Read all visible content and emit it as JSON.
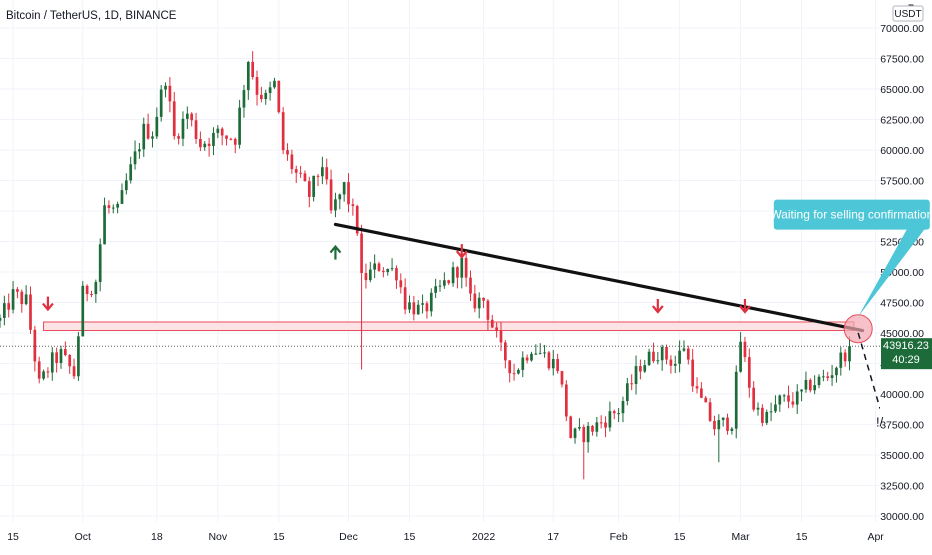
{
  "symbol_title": "Bitcoin / TetherUS, 1D, BINANCE",
  "currency_label": "USDT",
  "price_axis_top": "7",
  "last_price": "43916.23",
  "countdown": "40:29",
  "annotation": "Waiting for selling confirmation",
  "pullback_mark": "!/",
  "colors": {
    "up": "#1e6b3a",
    "down": "#e0303f",
    "trendline": "#111111",
    "zone_border": "#e74c5b",
    "zone_fill": "#fde3e5",
    "callout": "#4dc6d7",
    "circle": "#f2a7b0",
    "arrow_down": "#e0303f",
    "arrow_up": "#1e6b3a"
  },
  "chart_data": {
    "type": "candlestick",
    "symbol": "Bitcoin / TetherUS",
    "timeframe": "1D",
    "exchange": "BINANCE",
    "y_axis": {
      "ticks": [
        30000,
        32500,
        35000,
        37500,
        40000,
        42500,
        45000,
        47500,
        50000,
        52500,
        55000,
        57500,
        60000,
        62500,
        65000,
        67500,
        70000
      ],
      "range": [
        29500,
        72300
      ],
      "labels": [
        "30000.00",
        "32500.00",
        "35000.00",
        "37500.00",
        "40000.00",
        "42500.00",
        "45000.00",
        "47500.00",
        "50000.00",
        "52500.00",
        "55000.00",
        "57500.00",
        "60000.00",
        "62500.00",
        "65000.00",
        "67500.00",
        "70000.00"
      ]
    },
    "x_axis": {
      "range": [
        "2021-09-12",
        "2022-04-02"
      ],
      "ticks": [
        {
          "label": "15",
          "date": "2021-09-15"
        },
        {
          "label": "Oct",
          "date": "2021-10-01"
        },
        {
          "label": "18",
          "date": "2021-10-18"
        },
        {
          "label": "Nov",
          "date": "2021-11-01"
        },
        {
          "label": "15",
          "date": "2021-11-15"
        },
        {
          "label": "Dec",
          "date": "2021-12-01"
        },
        {
          "label": "15",
          "date": "2021-12-15"
        },
        {
          "label": "2022",
          "date": "2022-01-01"
        },
        {
          "label": "17",
          "date": "2022-01-17"
        },
        {
          "label": "Feb",
          "date": "2022-02-01"
        },
        {
          "label": "15",
          "date": "2022-02-15"
        },
        {
          "label": "Mar",
          "date": "2022-03-01"
        },
        {
          "label": "15",
          "date": "2022-03-15"
        },
        {
          "label": "Apr",
          "date": "2022-04-01"
        }
      ]
    },
    "path": [
      [
        "2021-09-12",
        46000
      ],
      [
        "2021-09-15",
        48100
      ],
      [
        "2021-09-18",
        47600
      ],
      [
        "2021-09-20",
        43000
      ],
      [
        "2021-09-21",
        40700
      ],
      [
        "2021-09-24",
        42700
      ],
      [
        "2021-09-26",
        43200
      ],
      [
        "2021-09-29",
        41600
      ],
      [
        "2021-10-01",
        48200
      ],
      [
        "2021-10-04",
        49300
      ],
      [
        "2021-10-06",
        55300
      ],
      [
        "2021-10-09",
        54900
      ],
      [
        "2021-10-11",
        57300
      ],
      [
        "2021-10-15",
        61600
      ],
      [
        "2021-10-17",
        61500
      ],
      [
        "2021-10-20",
        66000
      ],
      [
        "2021-10-22",
        61000
      ],
      [
        "2021-10-25",
        63000
      ],
      [
        "2021-10-28",
        60500
      ],
      [
        "2021-11-01",
        61300
      ],
      [
        "2021-11-05",
        61000
      ],
      [
        "2021-11-08",
        67500
      ],
      [
        "2021-11-10",
        64900
      ],
      [
        "2021-11-12",
        64200
      ],
      [
        "2021-11-14",
        65400
      ],
      [
        "2021-11-16",
        60000
      ],
      [
        "2021-11-19",
        58000
      ],
      [
        "2021-11-22",
        56300
      ],
      [
        "2021-11-25",
        58900
      ],
      [
        "2021-11-27",
        54800
      ],
      [
        "2021-11-30",
        57000
      ],
      [
        "2021-12-03",
        53600
      ],
      [
        "2021-12-04",
        49300
      ],
      [
        "2021-12-08",
        50500
      ],
      [
        "2021-12-12",
        50000
      ],
      [
        "2021-12-14",
        47500
      ],
      [
        "2021-12-18",
        46700
      ],
      [
        "2021-12-22",
        48600
      ],
      [
        "2021-12-27",
        50700
      ],
      [
        "2021-12-29",
        47500
      ],
      [
        "2022-01-01",
        47700
      ],
      [
        "2022-01-05",
        43500
      ],
      [
        "2022-01-08",
        41800
      ],
      [
        "2022-01-12",
        43900
      ],
      [
        "2022-01-15",
        43100
      ],
      [
        "2022-01-18",
        42300
      ],
      [
        "2022-01-21",
        36500
      ],
      [
        "2022-01-24",
        36700
      ],
      [
        "2022-01-28",
        37700
      ],
      [
        "2022-02-01",
        38700
      ],
      [
        "2022-02-06",
        42400
      ],
      [
        "2022-02-10",
        43500
      ],
      [
        "2022-02-14",
        42500
      ],
      [
        "2022-02-16",
        44000
      ],
      [
        "2022-02-19",
        40000
      ],
      [
        "2022-02-23",
        37300
      ],
      [
        "2022-02-27",
        37800
      ],
      [
        "2022-03-01",
        44400
      ],
      [
        "2022-03-04",
        39000
      ],
      [
        "2022-03-07",
        38000
      ],
      [
        "2022-03-10",
        39400
      ],
      [
        "2022-03-14",
        39600
      ],
      [
        "2022-03-17",
        40800
      ],
      [
        "2022-03-21",
        41400
      ],
      [
        "2022-03-24",
        42900
      ],
      [
        "2022-03-26",
        43916
      ]
    ],
    "sharp_wicks": [
      {
        "date": "2021-12-04",
        "low": 42000
      },
      {
        "date": "2022-01-24",
        "low": 33000
      },
      {
        "date": "2022-02-24",
        "low": 34400
      }
    ],
    "current_price": 43916.23,
    "resistance_zone": {
      "from": 45200,
      "to": 45900,
      "start": "2021-09-22",
      "end": "2022-03-27"
    },
    "trendline": {
      "start": {
        "date": "2021-11-28",
        "price": 53900
      },
      "end": {
        "date": "2022-03-29",
        "price": 45200
      }
    },
    "highlight_circle": {
      "date": "2022-03-28",
      "price": 45350
    },
    "projection": [
      {
        "date": "2022-03-28",
        "price": 45000
      },
      {
        "date": "2022-04-02",
        "price": 38800
      }
    ],
    "down_arrows": [
      {
        "date": "2021-09-23",
        "price": 47000
      },
      {
        "date": "2021-12-27",
        "price": 51300
      },
      {
        "date": "2022-02-10",
        "price": 46800
      },
      {
        "date": "2022-03-02",
        "price": 46800
      }
    ],
    "up_arrows": [
      {
        "date": "2021-11-28",
        "price": 52000
      }
    ],
    "annotation_anchor": {
      "date": "2022-03-10",
      "price": 54700
    },
    "grid": true,
    "legend": "none"
  }
}
